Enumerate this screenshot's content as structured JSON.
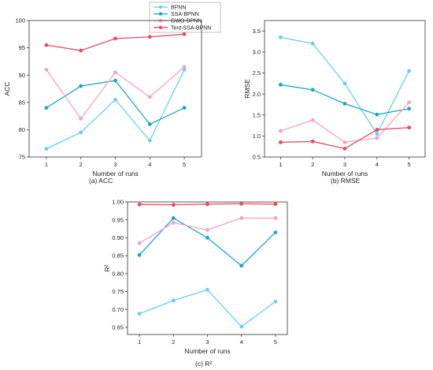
{
  "legend": {
    "items": [
      {
        "label": "BPNN",
        "color": "#66d0ec"
      },
      {
        "label": "SSA-BPNN",
        "color": "#1ba6cc"
      },
      {
        "label": "GWO-BPNN",
        "color": "#f6a3bf"
      },
      {
        "label": "Tent-SSA-BPNN",
        "color": "#e84b5f"
      }
    ],
    "placement": "top-center"
  },
  "chart_data": [
    {
      "type": "line",
      "caption": "(a) ACC",
      "xlabel": "Number of runs",
      "ylabel": "ACC",
      "x": [
        1,
        2,
        3,
        4,
        5
      ],
      "xlim": [
        0.5,
        5.5
      ],
      "ylim": [
        75,
        100
      ],
      "yticks": [
        "75",
        "80",
        "85",
        "90",
        "95",
        "100"
      ],
      "yticks_values": [
        75,
        80,
        85,
        90,
        95,
        100
      ],
      "series": [
        {
          "name": "BPNN",
          "values": [
            76.5,
            79.5,
            85.5,
            78.0,
            91.0
          ]
        },
        {
          "name": "SSA-BPNN",
          "values": [
            84.0,
            88.0,
            89.0,
            81.0,
            84.0
          ]
        },
        {
          "name": "GWO-BPNN",
          "values": [
            91.0,
            82.0,
            90.5,
            86.0,
            91.5
          ]
        },
        {
          "name": "Tent-SSA-BPNN",
          "values": [
            95.5,
            94.5,
            96.7,
            97.0,
            97.5
          ]
        }
      ]
    },
    {
      "type": "line",
      "caption": "(b) RMSE",
      "xlabel": "Number of runs",
      "ylabel": "RMSE",
      "x": [
        1,
        2,
        3,
        4,
        5
      ],
      "xlim": [
        0.5,
        5.5
      ],
      "ylim": [
        0.5,
        3.75
      ],
      "yticks": [
        "0.5",
        "1.0",
        "1.5",
        "2.0",
        "2.5",
        "3.0",
        "3.5"
      ],
      "yticks_values": [
        0.5,
        1.0,
        1.5,
        2.0,
        2.5,
        3.0,
        3.5
      ],
      "series": [
        {
          "name": "BPNN",
          "values": [
            3.35,
            3.2,
            2.25,
            1.05,
            2.55
          ]
        },
        {
          "name": "SSA-BPNN",
          "values": [
            2.22,
            2.1,
            1.77,
            1.51,
            1.65
          ]
        },
        {
          "name": "GWO-BPNN",
          "values": [
            1.12,
            1.38,
            0.85,
            0.95,
            1.8
          ]
        },
        {
          "name": "Tent-SSA-BPNN",
          "values": [
            0.85,
            0.87,
            0.7,
            1.15,
            1.2
          ]
        }
      ]
    },
    {
      "type": "line",
      "caption": "(c) R²",
      "xlabel": "Number of runs",
      "ylabel": "R²",
      "x": [
        1,
        2,
        3,
        4,
        5
      ],
      "xlim": [
        0.65,
        5.35
      ],
      "ylim": [
        0.63,
        1.0
      ],
      "yticks": [
        "0.65",
        "0.70",
        "0.75",
        "0.80",
        "0.85",
        "0.90",
        "0.95",
        "1.00"
      ],
      "yticks_values": [
        0.65,
        0.7,
        0.75,
        0.8,
        0.85,
        0.9,
        0.95,
        1.0
      ],
      "series": [
        {
          "name": "BPNN",
          "values": [
            0.688,
            0.725,
            0.755,
            0.652,
            0.722
          ]
        },
        {
          "name": "SSA-BPNN",
          "values": [
            0.852,
            0.955,
            0.9,
            0.822,
            0.915
          ]
        },
        {
          "name": "GWO-BPNN",
          "values": [
            0.885,
            0.942,
            0.922,
            0.955,
            0.955
          ]
        },
        {
          "name": "Tent-SSA-BPNN",
          "values": [
            0.993,
            0.992,
            0.994,
            0.995,
            0.994
          ]
        }
      ]
    }
  ]
}
